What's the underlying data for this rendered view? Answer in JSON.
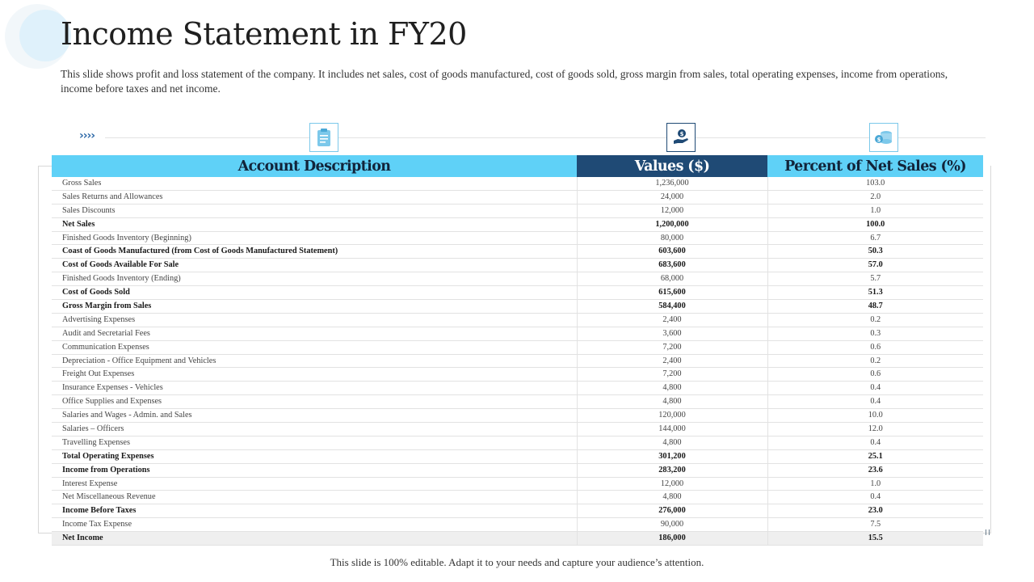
{
  "title": "Income Statement in FY20",
  "subtitle": "This slide shows profit and loss statement of the company. It includes net sales, cost of goods manufactured, cost of goods sold, gross margin from sales, total operating expenses, income from operations, income before taxes and net income.",
  "chevrons": "››››",
  "icons": [
    "clipboard-icon",
    "money-hand-icon",
    "coins-icon"
  ],
  "colors": {
    "header_light": "#5fd1f7",
    "header_dark": "#1f4a75",
    "accent": "#2f6aa8"
  },
  "table": {
    "headers": [
      "Account Description",
      "Values ($)",
      "Percent of Net Sales (%)"
    ],
    "rows": [
      {
        "desc": "Gross Sales",
        "value": "1,236,000",
        "pct": "103.0",
        "bold": false
      },
      {
        "desc": "Sales Returns and Allowances",
        "value": "24,000",
        "pct": "2.0",
        "bold": false
      },
      {
        "desc": "Sales Discounts",
        "value": "12,000",
        "pct": "1.0",
        "bold": false
      },
      {
        "desc": "Net Sales",
        "value": "1,200,000",
        "pct": "100.0",
        "bold": true
      },
      {
        "desc": "Finished Goods Inventory (Beginning)",
        "value": "80,000",
        "pct": "6.7",
        "bold": false
      },
      {
        "desc": "Coast of Goods Manufactured (from Cost of Goods Manufactured Statement)",
        "value": "603,600",
        "pct": "50.3",
        "bold": true
      },
      {
        "desc": "Cost of Goods Available For Sale",
        "value": "683,600",
        "pct": "57.0",
        "bold": true
      },
      {
        "desc": "Finished Goods Inventory (Ending)",
        "value": "68,000",
        "pct": "5.7",
        "bold": false
      },
      {
        "desc": "Cost of Goods Sold",
        "value": "615,600",
        "pct": "51.3",
        "bold": true
      },
      {
        "desc": "Gross Margin from Sales",
        "value": "584,400",
        "pct": "48.7",
        "bold": true
      },
      {
        "desc": "Advertising Expenses",
        "value": "2,400",
        "pct": "0.2",
        "bold": false
      },
      {
        "desc": "Audit and Secretarial Fees",
        "value": "3,600",
        "pct": "0.3",
        "bold": false
      },
      {
        "desc": "Communication Expenses",
        "value": "7,200",
        "pct": "0.6",
        "bold": false
      },
      {
        "desc": "Depreciation - Office Equipment and Vehicles",
        "value": "2,400",
        "pct": "0.2",
        "bold": false
      },
      {
        "desc": "Freight Out Expenses",
        "value": "7,200",
        "pct": "0.6",
        "bold": false
      },
      {
        "desc": "Insurance Expenses - Vehicles",
        "value": "4,800",
        "pct": "0.4",
        "bold": false
      },
      {
        "desc": "Office Supplies and Expenses",
        "value": "4,800",
        "pct": "0.4",
        "bold": false
      },
      {
        "desc": "Salaries and Wages - Admin. and Sales",
        "value": "120,000",
        "pct": "10.0",
        "bold": false
      },
      {
        "desc": "Salaries – Officers",
        "value": "144,000",
        "pct": "12.0",
        "bold": false
      },
      {
        "desc": "Travelling Expenses",
        "value": "4,800",
        "pct": "0.4",
        "bold": false
      },
      {
        "desc": "Total Operating Expenses",
        "value": "301,200",
        "pct": "25.1",
        "bold": true
      },
      {
        "desc": "Income from Operations",
        "value": "283,200",
        "pct": "23.6",
        "bold": true
      },
      {
        "desc": "Interest Expense",
        "value": "12,000",
        "pct": "1.0",
        "bold": false
      },
      {
        "desc": "Net Miscellaneous Revenue",
        "value": "4,800",
        "pct": "0.4",
        "bold": false
      },
      {
        "desc": "Income Before Taxes",
        "value": "276,000",
        "pct": "23.0",
        "bold": true
      },
      {
        "desc": "Income Tax Expense",
        "value": "90,000",
        "pct": "7.5",
        "bold": false
      },
      {
        "desc": "Net Income",
        "value": "186,000",
        "pct": "15.5",
        "bold": true
      }
    ]
  },
  "footer": "This slide is 100% editable. Adapt it to your needs and capture your audience’s attention."
}
